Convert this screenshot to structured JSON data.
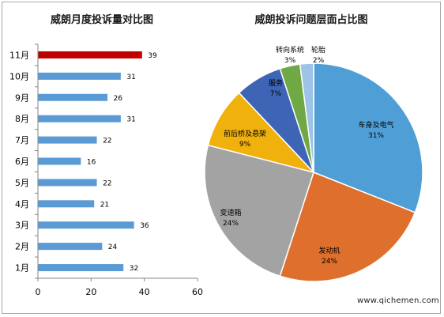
{
  "chart_data": [
    {
      "type": "bar",
      "orientation": "horizontal",
      "title": "威朗月度投诉量对比图",
      "categories": [
        "1月",
        "2月",
        "3月",
        "4月",
        "5月",
        "6月",
        "7月",
        "8月",
        "9月",
        "10月",
        "11月"
      ],
      "values": [
        32,
        24,
        36,
        21,
        22,
        16,
        22,
        31,
        26,
        31,
        39
      ],
      "xlim": [
        0,
        60
      ],
      "xticks": [
        0,
        20,
        40,
        60
      ],
      "grid": false,
      "colors": {
        "default": "#5b9bd5",
        "highlight": "#c00000"
      },
      "highlight_category": "11月"
    },
    {
      "type": "pie",
      "title": "威朗投诉问题层面占比图",
      "slices": [
        {
          "label": "车身及电气",
          "percent_label": "31%",
          "value": 31,
          "color": "#4f9fd6"
        },
        {
          "label": "发动机",
          "percent_label": "24%",
          "value": 24,
          "color": "#de6f2c"
        },
        {
          "label": "变速箱",
          "percent_label": "24%",
          "value": 24,
          "color": "#a3a3a3"
        },
        {
          "label": "前后桥及悬架",
          "percent_label": "9%",
          "value": 9,
          "color": "#f0b10d"
        },
        {
          "label": "服务",
          "percent_label": "7%",
          "value": 7,
          "color": "#3e64b5"
        },
        {
          "label": "转向系统",
          "percent_label": "3%",
          "value": 3,
          "color": "#70a846"
        },
        {
          "label": "轮胎",
          "percent_label": "2%",
          "value": 2,
          "color": "#9dc3e6"
        }
      ]
    }
  ],
  "watermark": "www.qichemen.com"
}
